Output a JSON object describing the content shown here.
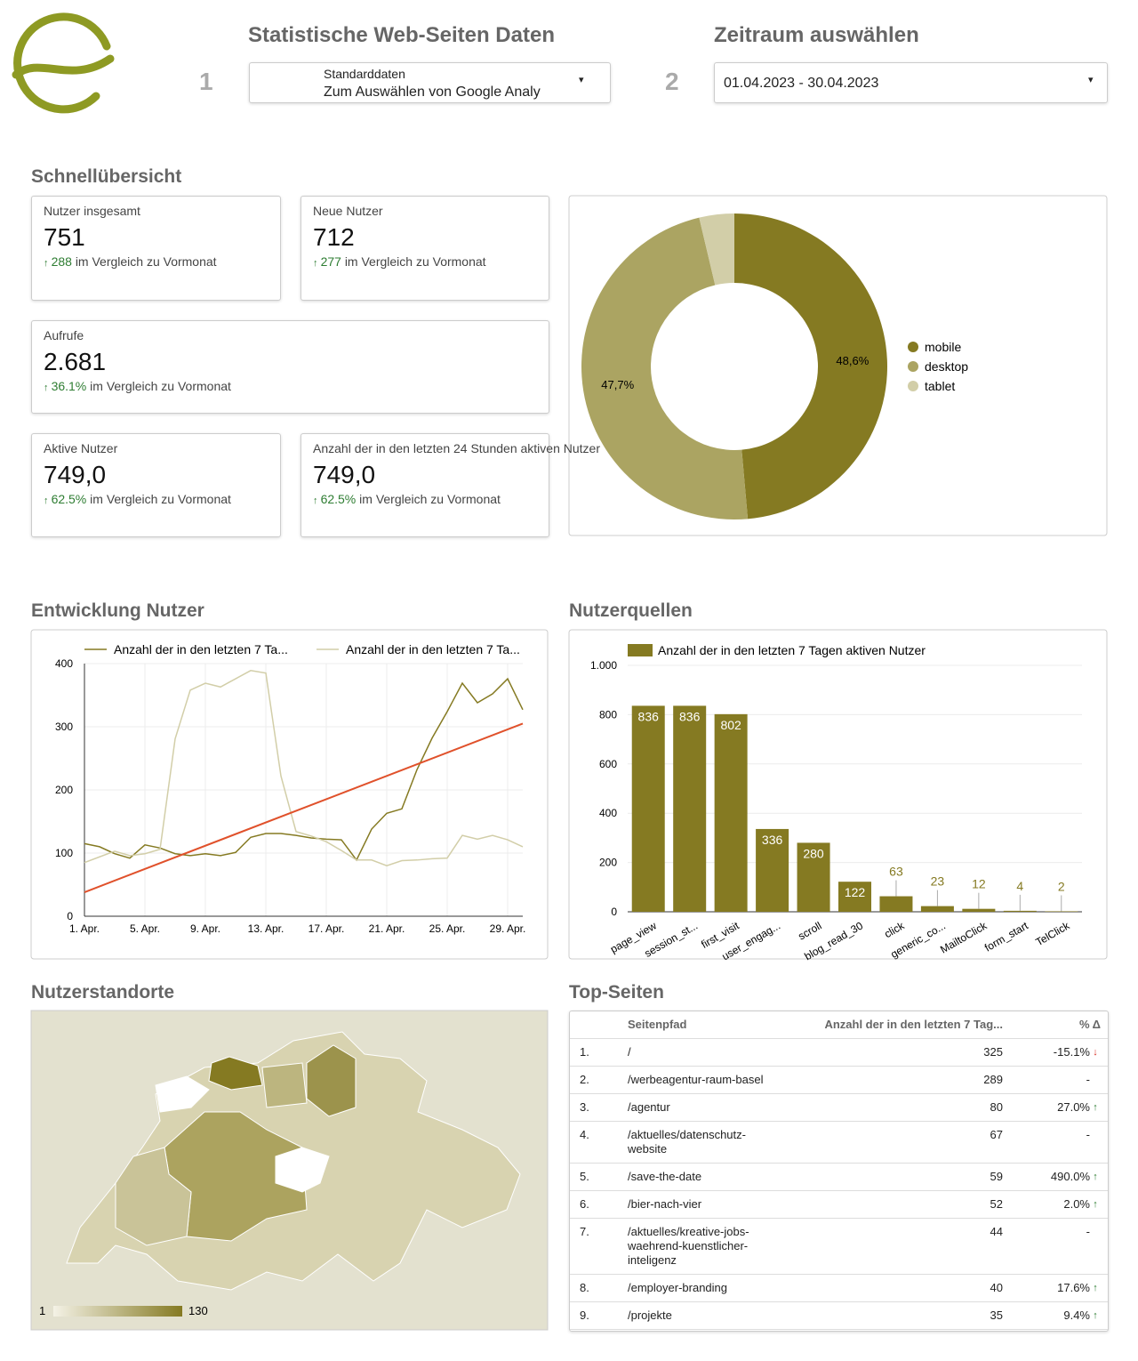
{
  "header": {
    "title": "Statistische Web-Seiten Daten",
    "step": "1",
    "source_label": "Standarddaten",
    "source_value": "Zum Auswählen von Google Analy",
    "date_title": "Zeitraum auswählen",
    "date_step": "2",
    "date_value": "01.04.2023 - 30.04.2023"
  },
  "overview": {
    "title": "Schnellübersicht",
    "cards": [
      {
        "label": "Nutzer insgesamt",
        "value": "751",
        "change": "288",
        "comparison": "im Vergleich zu Vormonat"
      },
      {
        "label": "Neue Nutzer",
        "value": "712",
        "change": "277",
        "comparison": "im Vergleich zu Vormonat"
      },
      {
        "label": "Aufrufe",
        "value": "2.681",
        "change": "36.1%",
        "comparison": "im Vergleich zu Vormonat"
      },
      {
        "label": "Aktive Nutzer",
        "value": "749,0",
        "change": "62.5%",
        "comparison": "im Vergleich zu Vormonat"
      },
      {
        "label": "Anzahl der in den letzten 24 Stunden aktiven Nutzer",
        "value": "749,0",
        "change": "62.5%",
        "comparison": "im Vergleich zu Vormonat"
      }
    ]
  },
  "chart_data": [
    {
      "type": "pie",
      "categories": [
        "mobile",
        "desktop",
        "tablet"
      ],
      "values": [
        48.6,
        47.7,
        3.7
      ],
      "value_labels": [
        "48,6%",
        "47,7%",
        null
      ],
      "colors": [
        "#857a22",
        "#aba462",
        "#d2cea8"
      ],
      "legend": "right"
    },
    {
      "type": "line",
      "title": "Entwicklung Nutzer",
      "categories": [
        "1. Apr.",
        null,
        null,
        null,
        "5. Apr.",
        null,
        null,
        null,
        "9. Apr.",
        null,
        null,
        null,
        "13. Apr.",
        null,
        null,
        null,
        "17. Apr.",
        null,
        null,
        null,
        "21. Apr.",
        null,
        null,
        null,
        "25. Apr.",
        null,
        null,
        null,
        "29. Apr.",
        null
      ],
      "series": [
        {
          "name": "Anzahl der in den letzten 7 Ta...",
          "color": "#857a22",
          "values": [
            115,
            110,
            99,
            92,
            113,
            108,
            99,
            96,
            99,
            96,
            101,
            125,
            131,
            131,
            128,
            124,
            122,
            121,
            89,
            138,
            163,
            170,
            232,
            282,
            324,
            369,
            338,
            352,
            376,
            327
          ]
        },
        {
          "name": "Anzahl der in den letzten 7 Ta...",
          "color": "#d2cea8",
          "values": [
            85,
            94,
            103,
            96,
            99,
            106,
            281,
            358,
            369,
            363,
            376,
            389,
            385,
            222,
            134,
            127,
            118,
            104,
            89,
            89,
            80,
            88,
            89,
            91,
            92,
            128,
            122,
            128,
            121,
            110
          ]
        }
      ],
      "trendline": {
        "color": "#e0512b",
        "values": [
          38,
          305
        ]
      },
      "ylim": [
        0,
        400
      ],
      "yticks": [
        0,
        100,
        200,
        300,
        400
      ],
      "grid": true,
      "legend": "top"
    },
    {
      "type": "bar",
      "title": "Nutzerquellen",
      "categories": [
        "page_view",
        "session_st...",
        "first_visit",
        "user_engag...",
        "scroll",
        "blog_read_30",
        "click",
        "generic_co...",
        "MailtoClick",
        "form_start",
        "TelClick"
      ],
      "series": [
        {
          "name": "Anzahl der in den letzten 7 Tagen aktiven Nutzer",
          "color": "#857a22",
          "values": [
            836,
            836,
            802,
            336,
            280,
            122,
            63,
            23,
            12,
            4,
            2
          ]
        }
      ],
      "ylim": [
        0,
        1000
      ],
      "yticks": [
        0,
        200,
        400,
        600,
        800,
        {
          "value": 1000,
          "label": "1.000"
        }
      ],
      "grid": true,
      "legend": "top"
    }
  ],
  "map": {
    "title": "Nutzerstandorte",
    "scale_min": 1,
    "scale_max": 130
  },
  "top_pages": {
    "title": "Top-Seiten",
    "columns": [
      "Seitenpfad",
      "Anzahl der in den letzten 7 Tag...",
      "% Δ"
    ],
    "rows": [
      [
        "1.",
        "/",
        "325",
        "-15.1%"
      ],
      [
        "2.",
        "/werbeagentur-raum-basel",
        "289",
        "-"
      ],
      [
        "3.",
        "/agentur",
        "80",
        "27.0%"
      ],
      [
        "4.",
        "/aktuelles/datenschutz-website",
        "67",
        "-"
      ],
      [
        "5.",
        "/save-the-date",
        "59",
        "490.0%"
      ],
      [
        "6.",
        "/bier-nach-vier",
        "52",
        "2.0%"
      ],
      [
        "7.",
        "/aktuelles/kreative-jobs-waehrend-kuenstlicher-inteligenz",
        "44",
        "-"
      ],
      [
        "8.",
        "/employer-branding",
        "40",
        "17.6%"
      ],
      [
        "9.",
        "/projekte",
        "35",
        "9.4%"
      ]
    ]
  }
}
